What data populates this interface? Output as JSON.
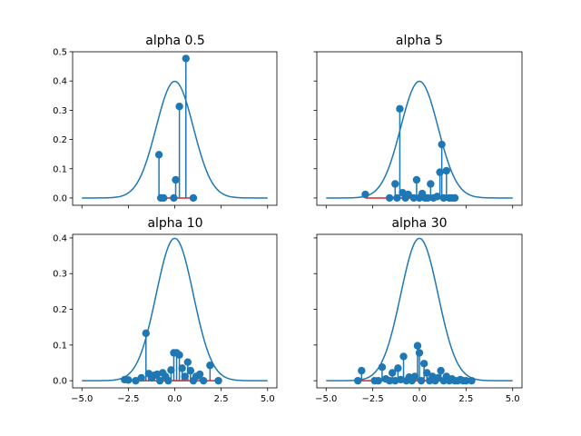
{
  "chart_data": [
    {
      "type": "line+stem",
      "title": "alpha 0.5",
      "xlim": [
        -5.5,
        5.5
      ],
      "ylim": [
        -0.025,
        0.5
      ],
      "xticks": [
        -5,
        -2.5,
        0,
        2.5,
        5
      ],
      "xtick_labels": [],
      "yticks": [
        0,
        0.1,
        0.2,
        0.3,
        0.4,
        0.5
      ],
      "ytick_labels": [
        "0.0",
        "0.1",
        "0.2",
        "0.3",
        "0.4",
        "0.5"
      ],
      "curve": {
        "function": "standard normal pdf",
        "x_range": [
          -5,
          5
        ],
        "color": "#1f77b4"
      },
      "stems": {
        "x": [
          -0.85,
          -0.75,
          -0.6,
          -0.05,
          0.05,
          0.25,
          0.6,
          1.0
        ],
        "y": [
          0.148,
          0.0,
          0.0,
          0.0,
          0.062,
          0.313,
          0.477,
          0.0
        ],
        "marker_color": "#1f77b4",
        "baseline_color": "#d62728"
      }
    },
    {
      "type": "line+stem",
      "title": "alpha 5",
      "xlim": [
        -5.5,
        5.5
      ],
      "ylim": [
        -0.025,
        0.5
      ],
      "xticks": [
        -5,
        -2.5,
        0,
        2.5,
        5
      ],
      "xtick_labels": [],
      "yticks": [
        0,
        0.1,
        0.2,
        0.3,
        0.4,
        0.5
      ],
      "ytick_labels": [],
      "curve": {
        "function": "standard normal pdf",
        "x_range": [
          -5,
          5
        ],
        "color": "#1f77b4"
      },
      "stems": {
        "x": [
          -2.9,
          -1.6,
          -1.3,
          -1.2,
          -1.05,
          -0.9,
          -0.75,
          -0.6,
          -0.3,
          -0.15,
          0.0,
          0.15,
          0.3,
          0.45,
          0.6,
          0.75,
          0.95,
          1.1,
          1.2,
          1.3,
          1.45,
          1.6,
          1.75,
          1.9
        ],
        "y": [
          0.012,
          0.0,
          0.048,
          0.0,
          0.305,
          0.018,
          0.0,
          0.012,
          0.0,
          0.062,
          0.0,
          0.015,
          0.0,
          0.0,
          0.048,
          0.0,
          0.005,
          0.088,
          0.183,
          0.0,
          0.093,
          0.0,
          0.0,
          0.0
        ],
        "marker_color": "#1f77b4",
        "baseline_color": "#d62728"
      }
    },
    {
      "type": "line+stem",
      "title": "alpha 10",
      "xlim": [
        -5.5,
        5.5
      ],
      "ylim": [
        -0.02,
        0.41
      ],
      "xticks": [
        -5,
        -2.5,
        0,
        2.5,
        5
      ],
      "xtick_labels": [
        "−5.0",
        "−2.5",
        "0.0",
        "2.5",
        "5.0"
      ],
      "yticks": [
        0,
        0.1,
        0.2,
        0.3,
        0.4
      ],
      "ytick_labels": [
        "0.0",
        "0.1",
        "0.2",
        "0.3",
        "0.4"
      ],
      "curve": {
        "function": "standard normal pdf",
        "x_range": [
          -5,
          5
        ],
        "color": "#1f77b4"
      },
      "stems": {
        "x": [
          -2.7,
          -2.5,
          -2.1,
          -1.8,
          -1.55,
          -1.4,
          -1.25,
          -1.1,
          -0.95,
          -0.8,
          -0.65,
          -0.5,
          -0.35,
          -0.2,
          -0.05,
          0.1,
          0.25,
          0.4,
          0.55,
          0.7,
          0.85,
          1.0,
          1.15,
          1.35,
          1.55,
          1.9,
          2.35
        ],
        "y": [
          0.003,
          0.002,
          0.0,
          0.008,
          0.133,
          0.02,
          0.008,
          0.015,
          0.018,
          0.0,
          0.022,
          0.012,
          0.0,
          0.03,
          0.078,
          0.078,
          0.072,
          0.035,
          0.012,
          0.052,
          0.028,
          0.0,
          0.012,
          0.018,
          0.0,
          0.043,
          0.0
        ],
        "marker_color": "#1f77b4",
        "baseline_color": "#d62728"
      }
    },
    {
      "type": "line+stem",
      "title": "alpha 30",
      "xlim": [
        -5.5,
        5.5
      ],
      "ylim": [
        -0.02,
        0.41
      ],
      "xticks": [
        -5,
        -2.5,
        0,
        2.5,
        5
      ],
      "xtick_labels": [
        "−5.0",
        "−2.5",
        "0.0",
        "2.5",
        "5.0"
      ],
      "yticks": [
        0,
        0.1,
        0.2,
        0.3,
        0.4
      ],
      "ytick_labels": [],
      "curve": {
        "function": "standard normal pdf",
        "x_range": [
          -5,
          5
        ],
        "color": "#1f77b4"
      },
      "stems": {
        "x": [
          -3.3,
          -3.1,
          -2.4,
          -2.2,
          -2.0,
          -1.8,
          -1.6,
          -1.45,
          -1.3,
          -1.15,
          -1.0,
          -0.85,
          -0.7,
          -0.55,
          -0.4,
          -0.25,
          -0.1,
          0.0,
          0.1,
          0.25,
          0.4,
          0.55,
          0.7,
          0.85,
          1.0,
          1.15,
          1.3,
          1.45,
          1.6,
          1.75,
          1.9,
          2.05,
          2.2,
          2.35,
          2.5,
          2.8
        ],
        "y": [
          0.0,
          0.028,
          0.0,
          0.0,
          0.038,
          0.005,
          0.0,
          0.022,
          0.0,
          0.035,
          0.003,
          0.068,
          0.0,
          0.01,
          0.0,
          0.012,
          0.098,
          0.078,
          0.0,
          0.048,
          0.022,
          0.0,
          0.012,
          0.0,
          0.008,
          0.028,
          0.0,
          0.012,
          0.0,
          0.005,
          0.0,
          0.0,
          0.003,
          0.0,
          0.0,
          0.0
        ],
        "marker_color": "#1f77b4",
        "baseline_color": "#d62728"
      }
    }
  ]
}
